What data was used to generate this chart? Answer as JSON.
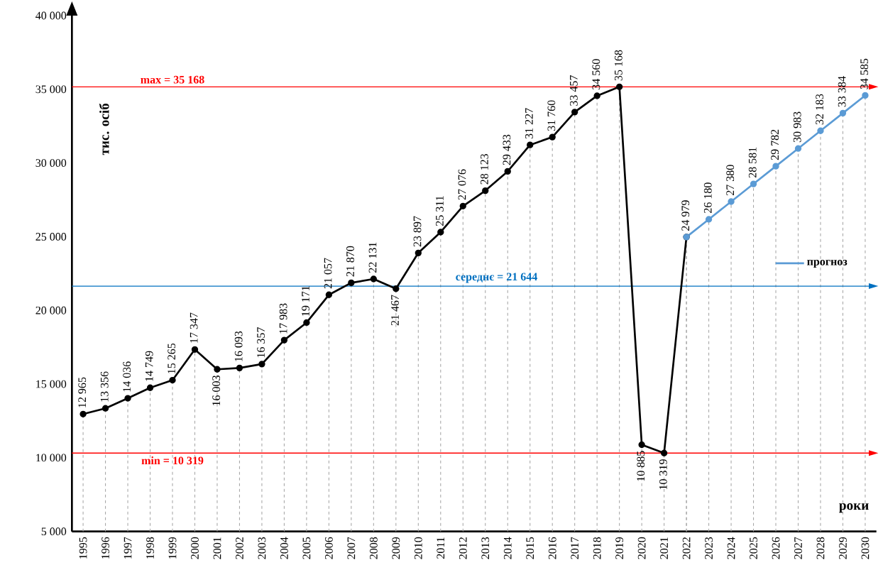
{
  "chart_data": {
    "type": "line",
    "categories": [
      "1995",
      "1996",
      "1997",
      "1998",
      "1999",
      "2000",
      "2001",
      "2002",
      "2003",
      "2004",
      "2005",
      "2006",
      "2007",
      "2008",
      "2009",
      "2010",
      "2011",
      "2012",
      "2013",
      "2014",
      "2015",
      "2016",
      "2017",
      "2018",
      "2019",
      "2020",
      "2021",
      "2022",
      "2023",
      "2024",
      "2025",
      "2026",
      "2027",
      "2028",
      "2029",
      "2030"
    ],
    "series": [
      {
        "color": "#000000",
        "values": [
          12965,
          13356,
          14036,
          14749,
          15265,
          17347,
          16003,
          16093,
          16357,
          17983,
          19171,
          21057,
          21870,
          22131,
          21467,
          23897,
          25311,
          27076,
          28123,
          29433,
          31227,
          31760,
          33457,
          34560,
          35168,
          10885,
          10319,
          24979,
          null,
          null,
          null,
          null,
          null,
          null,
          null,
          null
        ],
        "value_labels": [
          "12 965",
          "13 356",
          "14 036",
          "14 749",
          "15 265",
          "17 347",
          "16 003",
          "16 093",
          "16 357",
          "17 983",
          "19 171",
          "21 057",
          "21 870",
          "22 131",
          "21 467",
          "23 897",
          "25 311",
          "27 076",
          "28 123",
          "29 433",
          "31 227",
          "31 760",
          "33 457",
          "34 560",
          "35 168",
          "10 885",
          "10 319",
          "24 979",
          null,
          null,
          null,
          null,
          null,
          null,
          null,
          null
        ]
      },
      {
        "name": "прогноз",
        "color": "#5b9bd5",
        "values": [
          null,
          null,
          null,
          null,
          null,
          null,
          null,
          null,
          null,
          null,
          null,
          null,
          null,
          null,
          null,
          null,
          null,
          null,
          null,
          null,
          null,
          null,
          null,
          null,
          null,
          null,
          null,
          24979,
          26180,
          27380,
          28581,
          29782,
          30983,
          32183,
          33384,
          34585
        ],
        "value_labels": [
          null,
          null,
          null,
          null,
          null,
          null,
          null,
          null,
          null,
          null,
          null,
          null,
          null,
          null,
          null,
          null,
          null,
          null,
          null,
          null,
          null,
          null,
          null,
          null,
          null,
          null,
          null,
          null,
          "26 180",
          "27 380",
          "28 581",
          "29 782",
          "30 983",
          "32 183",
          "33 384",
          "34 585"
        ]
      }
    ],
    "ylabel": "тис. осіб",
    "xlabel": "роки",
    "ylim": [
      5000,
      40000
    ],
    "yticks": [
      {
        "value": 5000,
        "label": "5 000"
      },
      {
        "value": 10000,
        "label": "10 000"
      },
      {
        "value": 15000,
        "label": "15 000"
      },
      {
        "value": 20000,
        "label": "20 000"
      },
      {
        "value": 25000,
        "label": "25 000"
      },
      {
        "value": 30000,
        "label": "30 000"
      },
      {
        "value": 35000,
        "label": "35 000"
      },
      {
        "value": 40000,
        "label": "40 000"
      }
    ],
    "ref_lines": [
      {
        "axis": "y",
        "value": 35168,
        "label": "max = 35 168",
        "color": "#ff0000"
      },
      {
        "axis": "y",
        "value": 21644,
        "label": "середнє = 21 644",
        "color": "#0070c0"
      },
      {
        "axis": "y",
        "value": 10319,
        "label": "min = 10 319",
        "color": "#ff0000"
      }
    ],
    "grid": "x",
    "marker": "circle",
    "line_style": "solid",
    "legend": "right"
  }
}
